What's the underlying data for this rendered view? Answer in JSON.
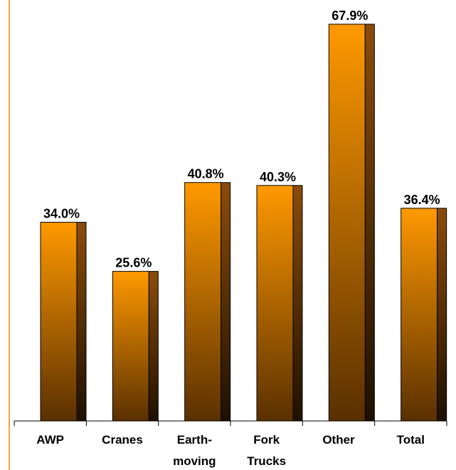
{
  "chart_data": {
    "type": "bar",
    "categories": [
      [
        "AWP"
      ],
      [
        "Cranes"
      ],
      [
        "Earth-",
        "moving"
      ],
      [
        "Fork",
        "Trucks"
      ],
      [
        "Other"
      ],
      [
        "Total"
      ]
    ],
    "values": [
      34.0,
      25.6,
      40.8,
      40.3,
      67.9,
      36.4
    ],
    "data_labels": [
      "34.0%",
      "25.6%",
      "40.8%",
      "40.3%",
      "67.9%",
      "36.4%"
    ],
    "ylim": [
      0,
      70
    ],
    "grid": false,
    "legend": "none",
    "colors": {
      "bar_top": "#ff9900",
      "bar_bottom": "#5a3000",
      "bar_side_top": "#8a4c0c",
      "bar_side_bottom": "#1e1000",
      "left_border": "#f5a540",
      "axis": "#000000"
    }
  }
}
